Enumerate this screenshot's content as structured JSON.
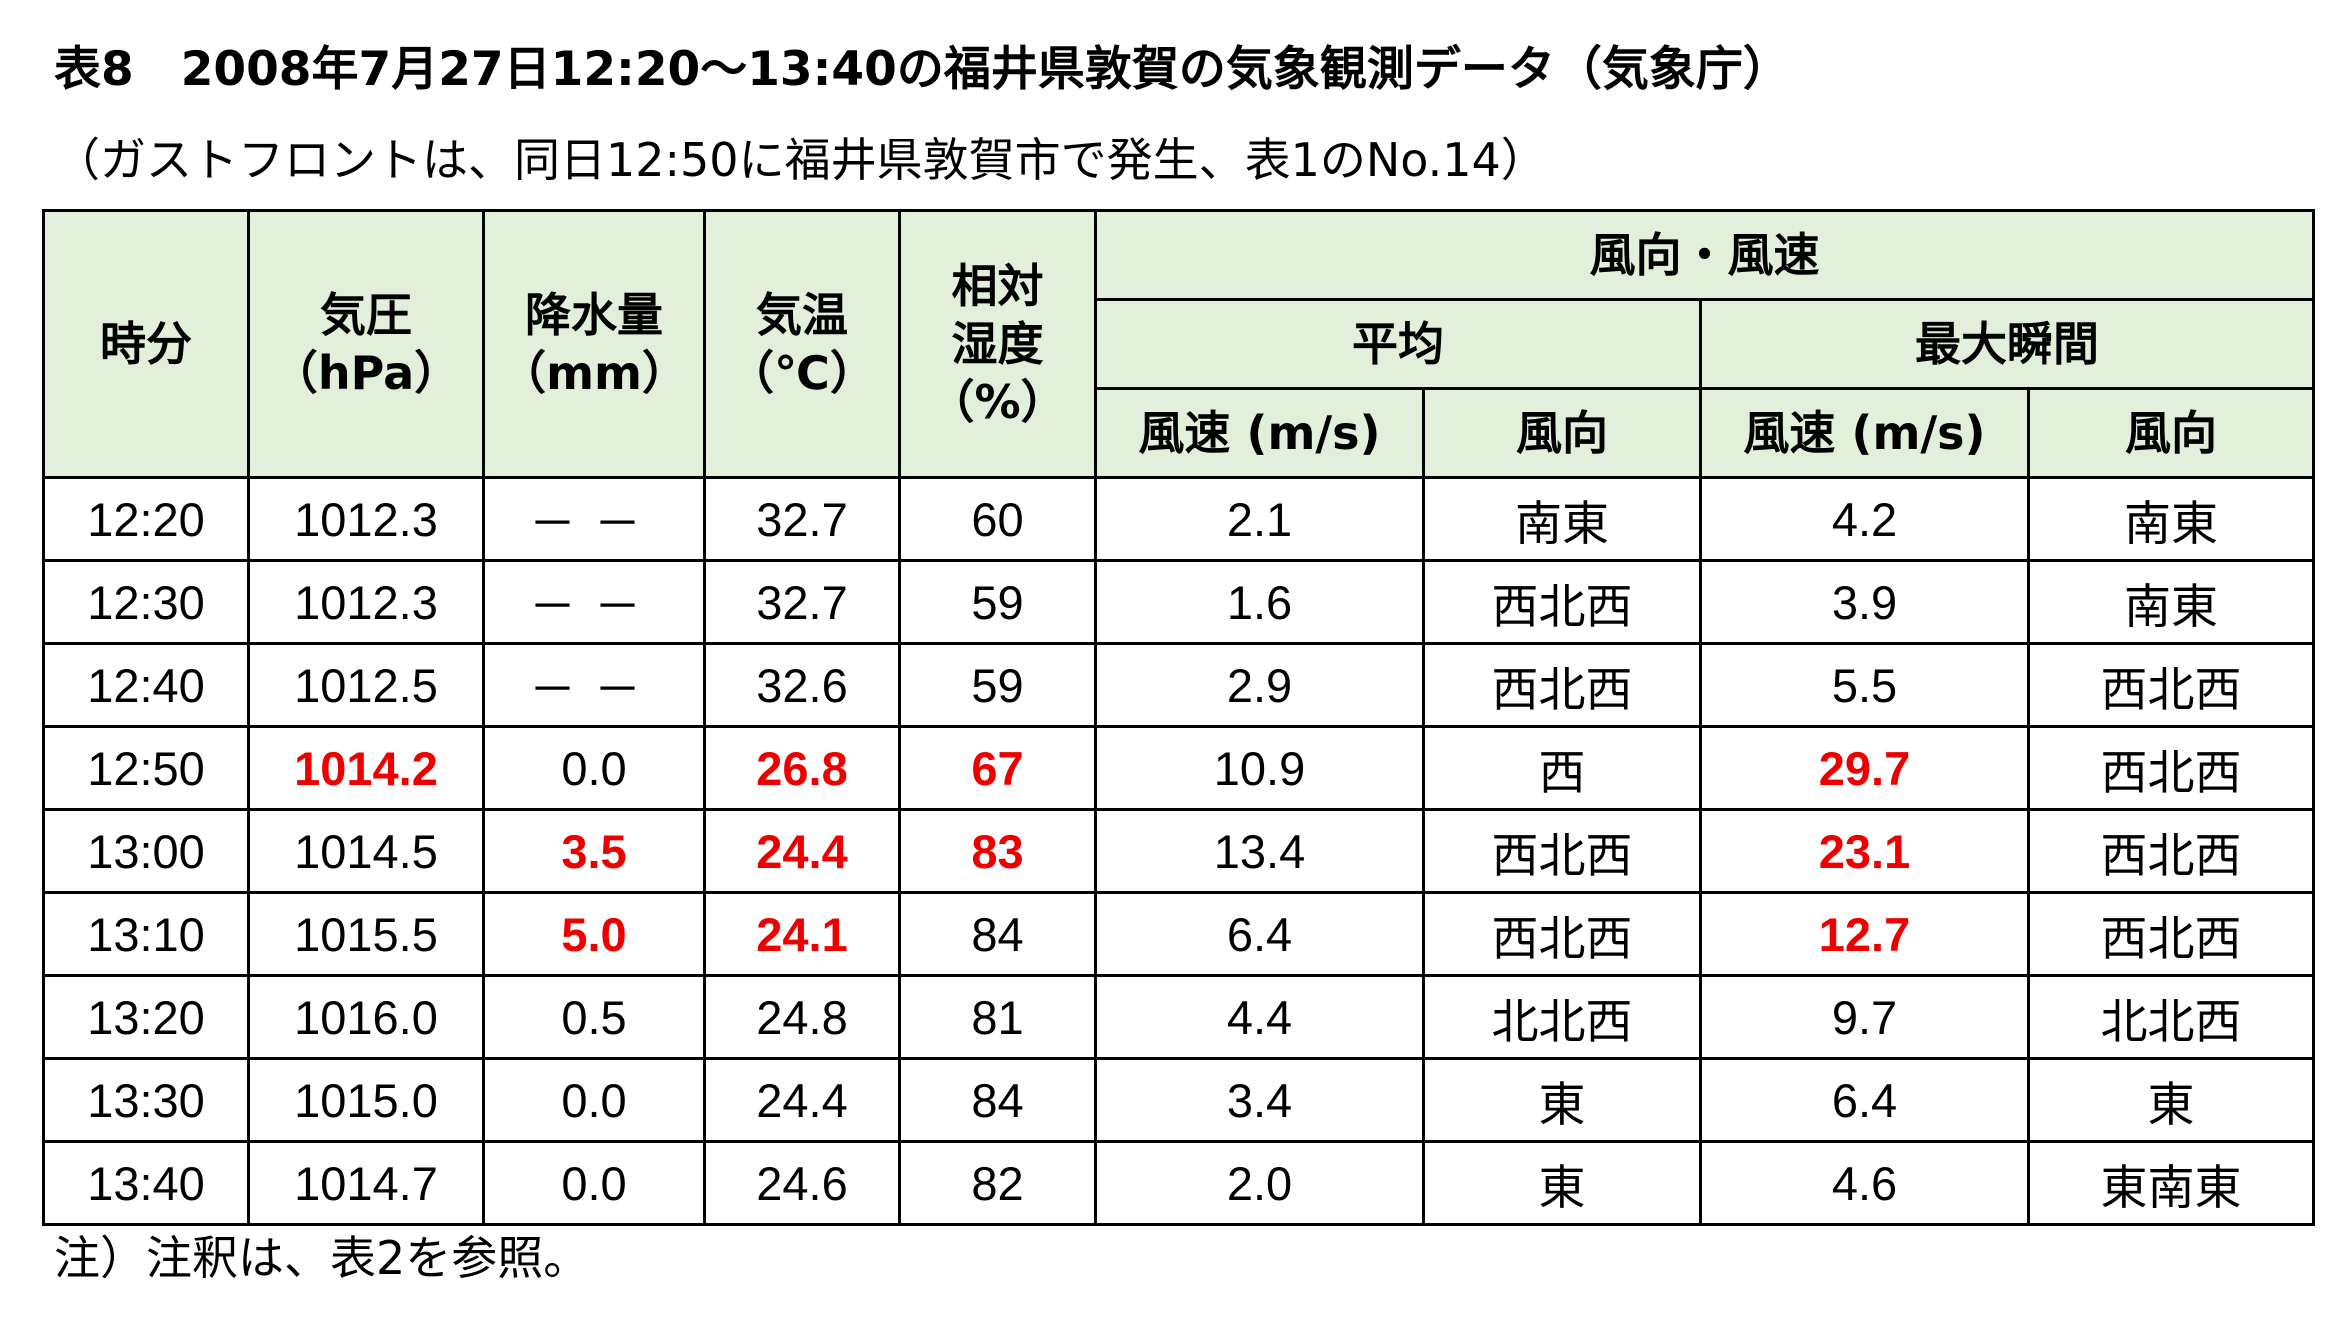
{
  "title": "表8　2008年7月27日12:20～13:40の福井県敦賀の気象観測データ（気象庁）",
  "subtitle": "（ガストフロントは、同日12:50に福井県敦賀市で発生、表1のNo.14）",
  "note": "注）注釈は、表2を参照。",
  "colors": {
    "header_bg": "#e2efda",
    "highlight": "#ee0000",
    "border": "#000000"
  },
  "table": {
    "headers": {
      "time": "時分",
      "pressure": "気圧",
      "pressure_unit": "（hPa）",
      "precip": "降水量",
      "precip_unit": "（mm）",
      "temp": "気温",
      "temp_unit": "（℃）",
      "humidity_1": "相対",
      "humidity_2": "湿度",
      "humidity_unit": "（%）",
      "wind": "風向・風速",
      "avg": "平均",
      "max": "最大瞬間",
      "avg_speed": "風速 (m/s)",
      "avg_dir": "風向",
      "max_speed": "風速 (m/s)",
      "max_dir": "風向"
    },
    "rows": [
      {
        "time": "12:20",
        "pressure": "1012.3",
        "precip": "－－",
        "temp": "32.7",
        "humidity": "60",
        "avg_speed": "2.1",
        "avg_dir": "南東",
        "max_speed": "4.2",
        "max_dir": "南東"
      },
      {
        "time": "12:30",
        "pressure": "1012.3",
        "precip": "－－",
        "temp": "32.7",
        "humidity": "59",
        "avg_speed": "1.6",
        "avg_dir": "西北西",
        "max_speed": "3.9",
        "max_dir": "南東"
      },
      {
        "time": "12:40",
        "pressure": "1012.5",
        "precip": "－－",
        "temp": "32.6",
        "humidity": "59",
        "avg_speed": "2.9",
        "avg_dir": "西北西",
        "max_speed": "5.5",
        "max_dir": "西北西"
      },
      {
        "time": "12:50",
        "pressure": "1014.2",
        "precip": "0.0",
        "temp": "26.8",
        "humidity": "67",
        "avg_speed": "10.9",
        "avg_dir": "西",
        "max_speed": "29.7",
        "max_dir": "西北西"
      },
      {
        "time": "13:00",
        "pressure": "1014.5",
        "precip": "3.5",
        "temp": "24.4",
        "humidity": "83",
        "avg_speed": "13.4",
        "avg_dir": "西北西",
        "max_speed": "23.1",
        "max_dir": "西北西"
      },
      {
        "time": "13:10",
        "pressure": "1015.5",
        "precip": "5.0",
        "temp": "24.1",
        "humidity": "84",
        "avg_speed": "6.4",
        "avg_dir": "西北西",
        "max_speed": "12.7",
        "max_dir": "西北西"
      },
      {
        "time": "13:20",
        "pressure": "1016.0",
        "precip": "0.5",
        "temp": "24.8",
        "humidity": "81",
        "avg_speed": "4.4",
        "avg_dir": "北北西",
        "max_speed": "9.7",
        "max_dir": "北北西"
      },
      {
        "time": "13:30",
        "pressure": "1015.0",
        "precip": "0.0",
        "temp": "24.4",
        "humidity": "84",
        "avg_speed": "3.4",
        "avg_dir": "東",
        "max_speed": "6.4",
        "max_dir": "東"
      },
      {
        "time": "13:40",
        "pressure": "1014.7",
        "precip": "0.0",
        "temp": "24.6",
        "humidity": "82",
        "avg_speed": "2.0",
        "avg_dir": "東",
        "max_speed": "4.6",
        "max_dir": "東南東"
      }
    ]
  }
}
